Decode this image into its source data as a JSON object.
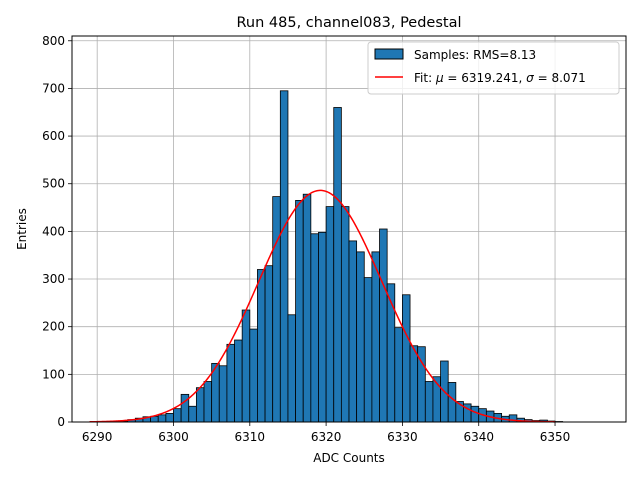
{
  "chart_data": {
    "type": "bar",
    "title": "Run 485, channel083, Pedestal",
    "xlabel": "ADC Counts",
    "ylabel": "Entries",
    "xlim": [
      6286.7,
      6359.3
    ],
    "ylim": [
      0,
      810
    ],
    "xticks": [
      6290,
      6300,
      6310,
      6320,
      6330,
      6340,
      6350
    ],
    "yticks": [
      0,
      100,
      200,
      300,
      400,
      500,
      600,
      700,
      800
    ],
    "grid": true,
    "legend_position": "top-right",
    "histogram": {
      "name": "Samples: RMS=8.13",
      "color": "#1f77b4",
      "edge_color": "#000000",
      "bin_width": 1,
      "bin_start": 6289,
      "values": [
        0,
        0,
        0,
        0,
        2,
        5,
        8,
        11,
        12,
        15,
        18,
        28,
        58,
        33,
        72,
        85,
        123,
        118,
        163,
        172,
        235,
        195,
        320,
        328,
        473,
        695,
        225,
        465,
        478,
        395,
        398,
        452,
        660,
        452,
        380,
        357,
        303,
        357,
        405,
        290,
        198,
        267,
        160,
        158,
        85,
        95,
        128,
        83,
        43,
        38,
        33,
        28,
        23,
        18,
        12,
        15,
        8,
        5,
        3,
        4,
        2,
        1,
        0
      ]
    },
    "fit": {
      "name": "Fit: μ = 6319.241, σ = 8.071",
      "name_parts": [
        "Fit: ",
        "μ",
        " = 6319.241, ",
        "σ",
        " = 8.071"
      ],
      "color": "#ff0000",
      "mu": 6319.241,
      "sigma": 8.071,
      "amplitude": 486,
      "x_range": [
        6289,
        6350
      ]
    }
  }
}
